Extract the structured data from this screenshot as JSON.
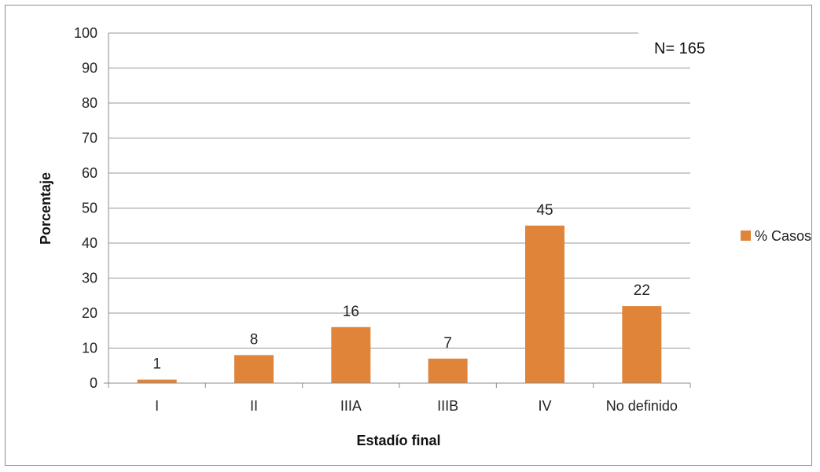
{
  "chart_data": {
    "type": "bar",
    "categories": [
      "I",
      "II",
      "IIIA",
      "IIIB",
      "IV",
      "No definido"
    ],
    "series": [
      {
        "name": "% Casos",
        "values": [
          1,
          8,
          16,
          7,
          45,
          22
        ],
        "color": "#E0843A"
      }
    ],
    "data_labels": [
      "1",
      "8",
      "16",
      "7",
      "45",
      "22"
    ],
    "xlabel": "Estadío final",
    "ylabel": "Porcentaje",
    "ylim": [
      0,
      100
    ],
    "yticks": [
      0,
      10,
      20,
      30,
      40,
      50,
      60,
      70,
      80,
      90,
      100
    ],
    "grid": true,
    "legend_position": "right",
    "annotation": "N= 165"
  }
}
